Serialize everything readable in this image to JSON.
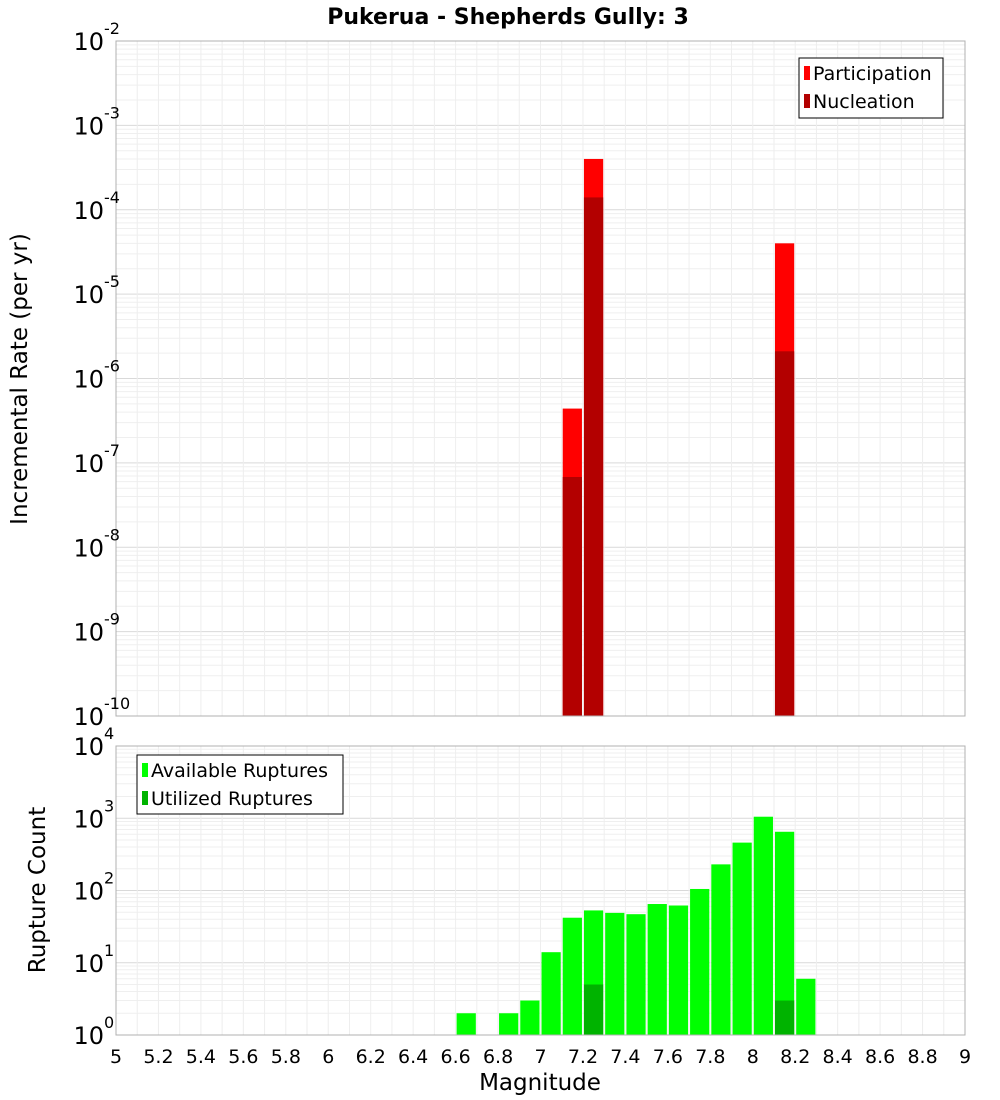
{
  "chart_data": [
    {
      "type": "bar",
      "title": "Pukerua - Shepherds Gully: 3",
      "ylabel": "Incremental Rate (per yr)",
      "yscale": "log",
      "ylim_exp": [
        -10,
        -2
      ],
      "xlim": [
        5,
        9
      ],
      "bin_width": 0.1,
      "legend_position": "top-right",
      "series": [
        {
          "name": "Participation",
          "color": "#ff0000",
          "x": [
            7.15,
            7.25,
            8.15
          ],
          "values": [
            4.4e-07,
            0.0004,
            4e-05
          ]
        },
        {
          "name": "Nucleation",
          "color": "#b30000",
          "x": [
            7.15,
            7.25,
            8.15
          ],
          "values": [
            6.8e-08,
            0.00014,
            2.1e-06
          ]
        }
      ]
    },
    {
      "type": "bar",
      "xlabel": "Magnitude",
      "ylabel": "Rupture Count",
      "yscale": "log",
      "ylim_exp": [
        0,
        4
      ],
      "xlim": [
        5,
        9
      ],
      "bin_width": 0.1,
      "legend_position": "top-left",
      "series": [
        {
          "name": "Available Ruptures",
          "color": "#00ff00",
          "x": [
            6.65,
            6.85,
            6.95,
            7.05,
            7.15,
            7.25,
            7.35,
            7.45,
            7.55,
            7.65,
            7.75,
            7.85,
            7.95,
            8.05,
            8.15,
            8.25
          ],
          "values": [
            2,
            2,
            3,
            14,
            42,
            53,
            49,
            47,
            65,
            62,
            105,
            230,
            460,
            1050,
            650,
            6
          ]
        },
        {
          "name": "Utilized Ruptures",
          "color": "#00b300",
          "x": [
            7.15,
            7.25,
            8.15
          ],
          "values": [
            1,
            5,
            3
          ]
        }
      ]
    }
  ],
  "x_ticks": [
    "5",
    "5.2",
    "5.4",
    "5.6",
    "5.8",
    "6",
    "6.2",
    "6.4",
    "6.6",
    "6.8",
    "7",
    "7.2",
    "7.4",
    "7.6",
    "7.8",
    "8",
    "8.2",
    "8.4",
    "8.6",
    "8.8",
    "9"
  ],
  "top_y_ticks": [
    "-10",
    "-9",
    "-8",
    "-7",
    "-6",
    "-5",
    "-4",
    "-3",
    "-2"
  ],
  "bottom_y_ticks": [
    "0",
    "1",
    "2",
    "3",
    "4"
  ],
  "tick_base": "10"
}
